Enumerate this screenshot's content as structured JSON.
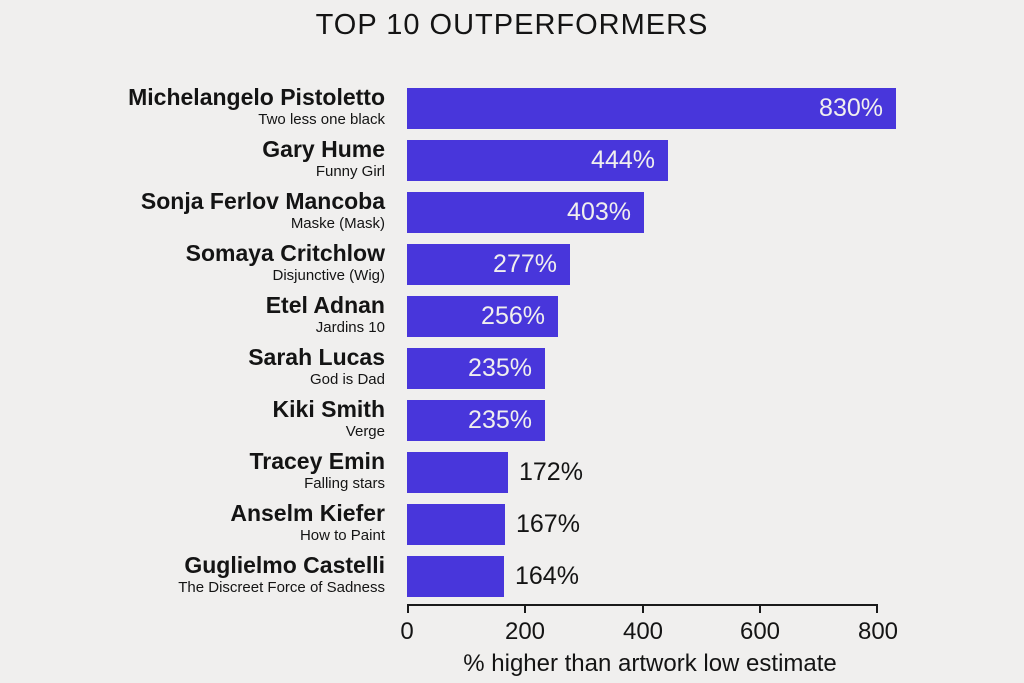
{
  "colors": {
    "background": "#f0efee",
    "bar": "#4836db",
    "text": "#141414",
    "value_label_inside": "#f0efee",
    "value_label_outside": "#141414",
    "axis_line": "#1a1a1a"
  },
  "chart_data": {
    "type": "bar",
    "orientation": "horizontal",
    "title": "TOP 10 OUTPERFORMERS",
    "xlabel": "% higher than artwork low estimate",
    "xlim": [
      0,
      800
    ],
    "x_ticks": [
      0,
      200,
      400,
      600,
      800
    ],
    "grid": false,
    "legend": false,
    "rows": [
      {
        "artist": "Michelangelo Pistoletto",
        "artwork": "Two less one black",
        "value": 830,
        "value_label": "830%",
        "label_position": "inside"
      },
      {
        "artist": "Gary Hume",
        "artwork": "Funny Girl",
        "value": 444,
        "value_label": "444%",
        "label_position": "inside"
      },
      {
        "artist": "Sonja Ferlov Mancoba",
        "artwork": "Maske (Mask)",
        "value": 403,
        "value_label": "403%",
        "label_position": "inside"
      },
      {
        "artist": "Somaya Critchlow",
        "artwork": "Disjunctive (Wig)",
        "value": 277,
        "value_label": "277%",
        "label_position": "inside"
      },
      {
        "artist": "Etel Adnan",
        "artwork": "Jardins 10",
        "value": 256,
        "value_label": "256%",
        "label_position": "inside"
      },
      {
        "artist": "Sarah Lucas",
        "artwork": "God is Dad",
        "value": 235,
        "value_label": "235%",
        "label_position": "inside"
      },
      {
        "artist": "Kiki Smith",
        "artwork": "Verge",
        "value": 235,
        "value_label": "235%",
        "label_position": "inside"
      },
      {
        "artist": "Tracey Emin",
        "artwork": "Falling stars",
        "value": 172,
        "value_label": "172%",
        "label_position": "outside"
      },
      {
        "artist": "Anselm Kiefer",
        "artwork": "How to Paint",
        "value": 167,
        "value_label": "167%",
        "label_position": "outside"
      },
      {
        "artist": "Guglielmo Castelli",
        "artwork": "The Discreet Force of Sadness",
        "value": 164,
        "value_label": "164%",
        "label_position": "outside"
      }
    ]
  }
}
